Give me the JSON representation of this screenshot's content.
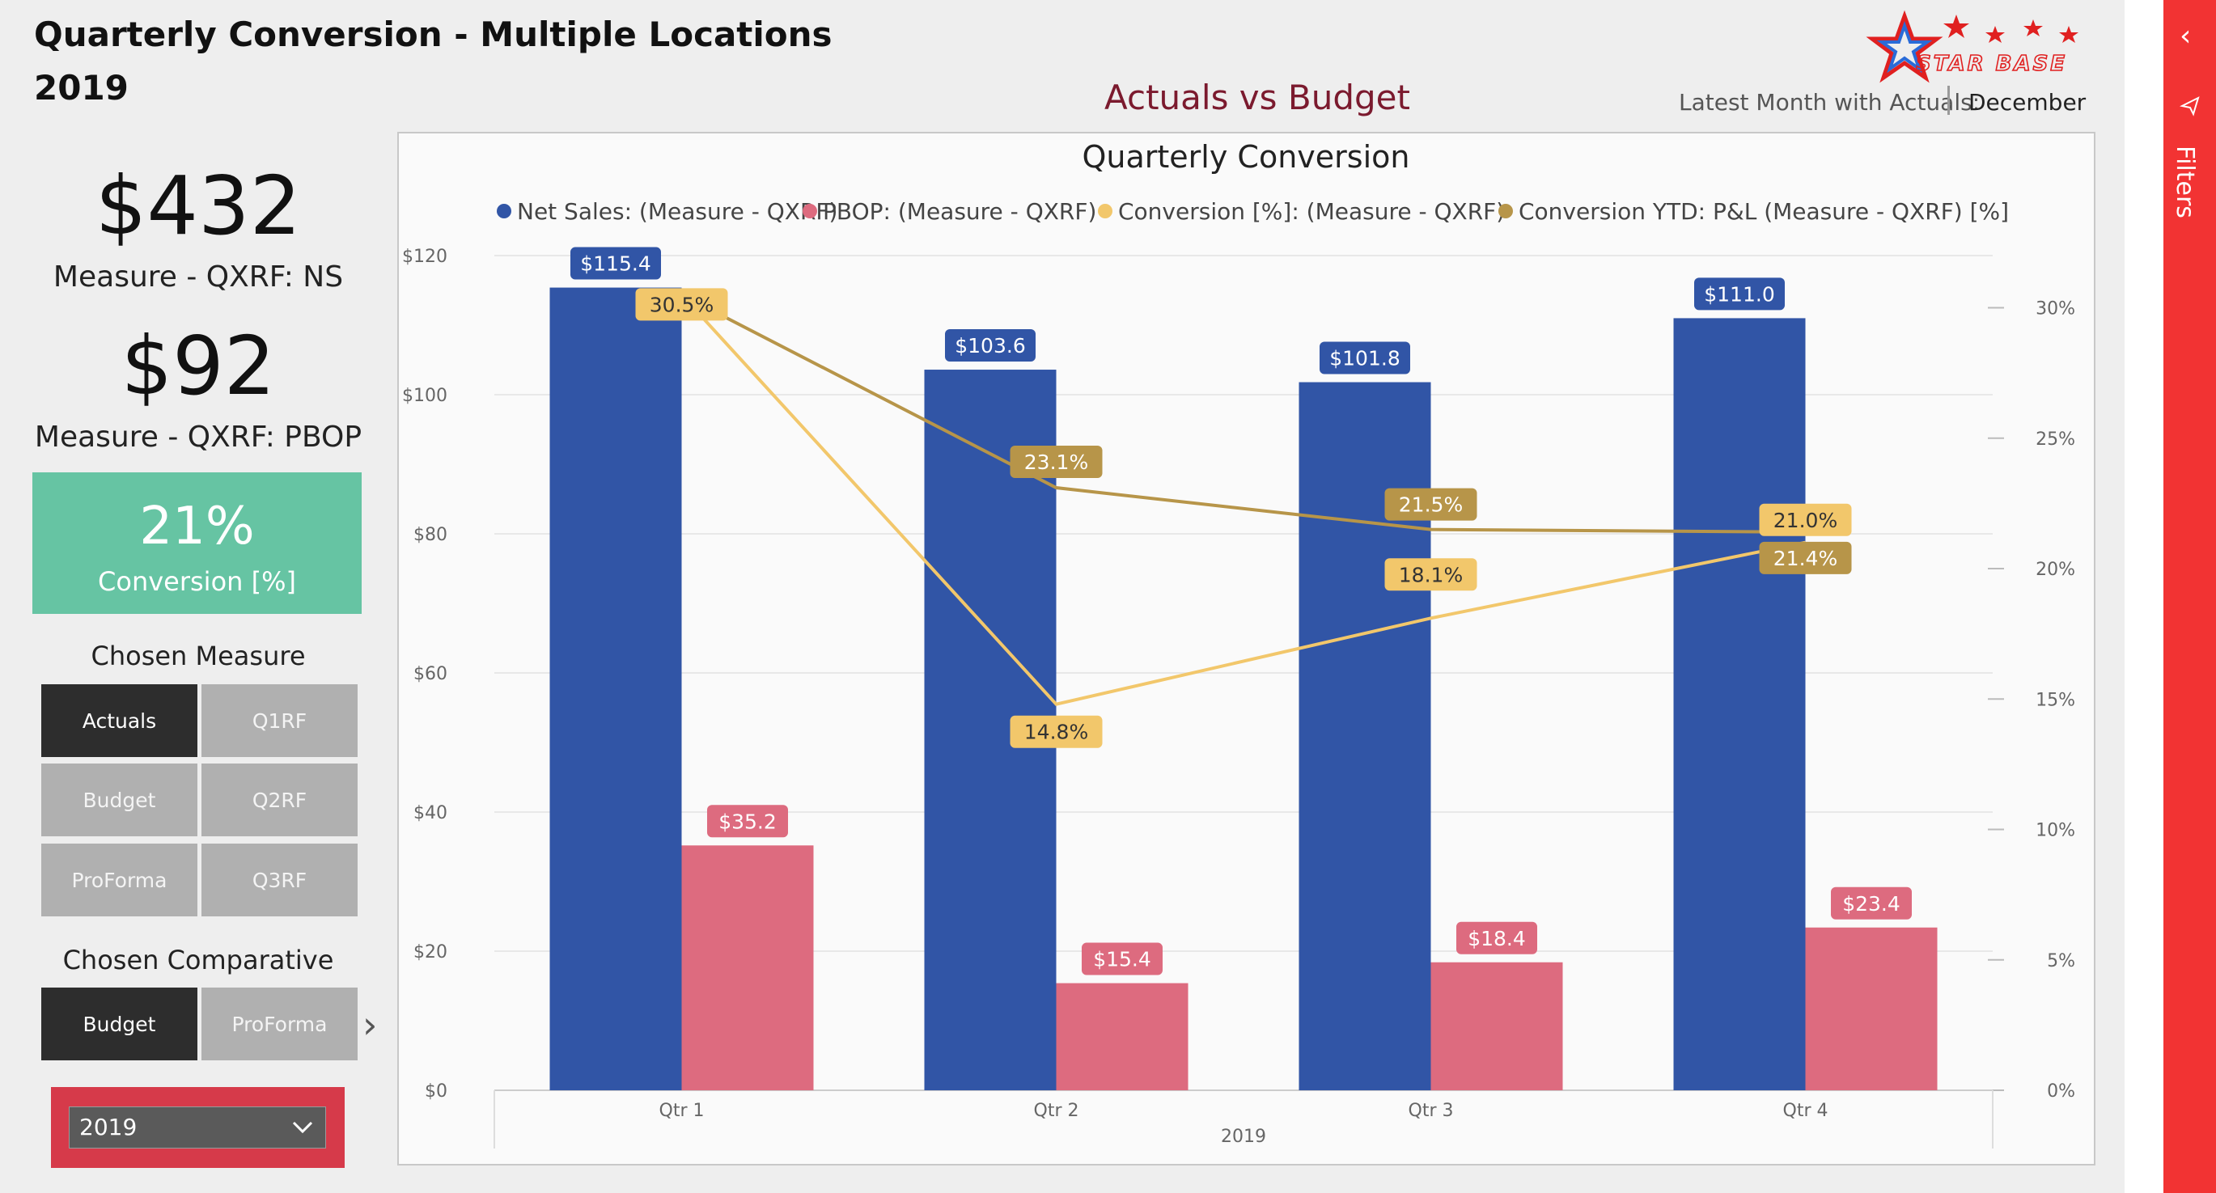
{
  "report": {
    "title_line1": "Quarterly Conversion - Multiple Locations",
    "title_line2": "2019",
    "logo_text": "STAR BASE",
    "chart_heading": "Actuals vs Budget",
    "latest_label": "Latest Month with Actuals:",
    "latest_value": "December"
  },
  "kpis": {
    "ns_value": "$432",
    "ns_label": "Measure - QXRF: NS",
    "pbop_value": "$92",
    "pbop_label": "Measure - QXRF: PBOP",
    "conv_value": "21%",
    "conv_label": "Conversion [%]"
  },
  "chosen_measure": {
    "title": "Chosen Measure",
    "options": [
      "Actuals",
      "Q1RF",
      "Budget",
      "Q2RF",
      "ProForma",
      "Q3RF"
    ],
    "selected": "Actuals"
  },
  "chosen_comparative": {
    "title": "Chosen Comparative",
    "options": [
      "Budget",
      "ProForma"
    ],
    "selected": "Budget"
  },
  "year_dropdown": {
    "value": "2019"
  },
  "filters_pane": {
    "label": "Filters"
  },
  "colors": {
    "net_sales": "#3155a6",
    "pbop": "#dd6b7f",
    "conversion": "#f2c76b",
    "conversion_ytd": "#b79549",
    "conv_box": "#66c4a3",
    "filters": "#f23333"
  },
  "chart_data": {
    "type": "bar",
    "title": "Quarterly Conversion",
    "categories": [
      "Qtr 1",
      "Qtr 2",
      "Qtr 3",
      "Qtr 4"
    ],
    "xlabel": "2019",
    "ylim": [
      0,
      120
    ],
    "y2lim": [
      0,
      32
    ],
    "y_ticks": [
      "$0",
      "$20",
      "$40",
      "$60",
      "$80",
      "$100",
      "$120"
    ],
    "y2_ticks": [
      "0%",
      "5%",
      "10%",
      "15%",
      "20%",
      "25%",
      "30%"
    ],
    "legend_position": "top",
    "series": [
      {
        "name": "Net Sales: (Measure - QXRF)",
        "kind": "bar",
        "axis": "left",
        "values": [
          115.4,
          103.6,
          101.8,
          111.0
        ],
        "labels": [
          "$115.4",
          "$103.6",
          "$101.8",
          "$111.0"
        ]
      },
      {
        "name": "PBOP: (Measure - QXRF)",
        "kind": "bar",
        "axis": "left",
        "values": [
          35.2,
          15.4,
          18.4,
          23.4
        ],
        "labels": [
          "$35.2",
          "$15.4",
          "$18.4",
          "$23.4"
        ]
      },
      {
        "name": "Conversion [%]: (Measure - QXRF)",
        "kind": "line",
        "axis": "right",
        "values": [
          30.5,
          14.8,
          18.1,
          21.0
        ],
        "labels": [
          "30.5%",
          "14.8%",
          "18.1%",
          "21.0%"
        ]
      },
      {
        "name": "Conversion YTD: P&L (Measure - QXRF) [%]",
        "kind": "line",
        "axis": "right",
        "values": [
          30.5,
          23.1,
          21.5,
          21.4
        ],
        "labels": [
          "",
          "23.1%",
          "21.5%",
          "21.4%"
        ]
      }
    ]
  }
}
